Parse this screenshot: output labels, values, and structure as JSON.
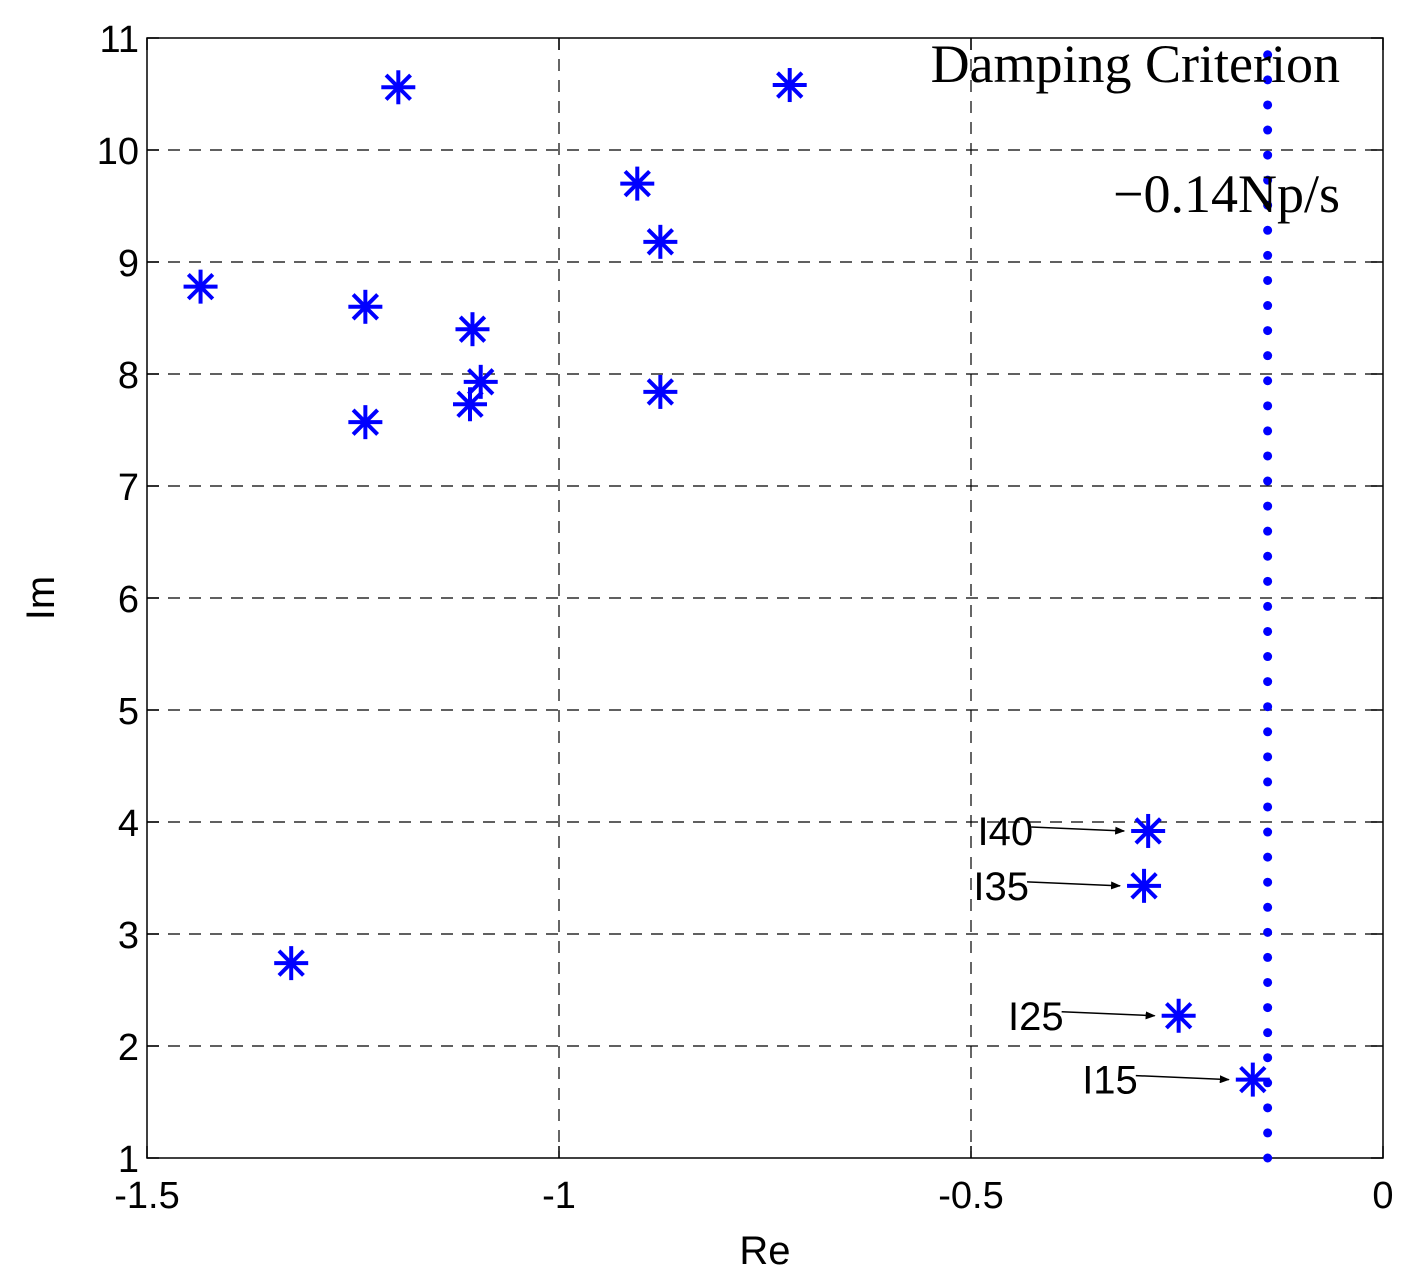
{
  "chart_data": {
    "type": "scatter",
    "title": "",
    "xlabel": "Re",
    "ylabel": "Im",
    "xlim": [
      -1.5,
      0
    ],
    "ylim": [
      1,
      11
    ],
    "xticks": [
      -1.5,
      -1,
      -0.5,
      0
    ],
    "xtick_labels": [
      "-1.5",
      "-1",
      "-0.5",
      "0"
    ],
    "yticks": [
      1,
      2,
      3,
      4,
      5,
      6,
      7,
      8,
      9,
      10,
      11
    ],
    "ytick_labels": [
      "1",
      "2",
      "3",
      "4",
      "5",
      "6",
      "7",
      "8",
      "9",
      "10",
      "11"
    ],
    "grid": true,
    "marker": "asterisk",
    "marker_color": "#0000ff",
    "points": [
      {
        "x": -1.435,
        "y": 8.78
      },
      {
        "x": -1.195,
        "y": 10.56
      },
      {
        "x": -1.235,
        "y": 8.6
      },
      {
        "x": -1.235,
        "y": 7.57
      },
      {
        "x": -1.105,
        "y": 8.4
      },
      {
        "x": -1.095,
        "y": 7.93
      },
      {
        "x": -1.108,
        "y": 7.73
      },
      {
        "x": -1.325,
        "y": 2.74
      },
      {
        "x": -0.905,
        "y": 9.7
      },
      {
        "x": -0.877,
        "y": 9.18
      },
      {
        "x": -0.877,
        "y": 7.84
      },
      {
        "x": -0.72,
        "y": 10.58
      },
      {
        "x": -0.285,
        "y": 3.92
      },
      {
        "x": -0.29,
        "y": 3.43
      },
      {
        "x": -0.248,
        "y": 2.27
      },
      {
        "x": -0.158,
        "y": 1.7
      }
    ],
    "criterion": {
      "x": -0.14,
      "color": "#0000ff",
      "style": "dotted",
      "label_line1": "Damping Criterion",
      "label_line2": "−0.14Np/s"
    },
    "annotations": [
      {
        "text": "I40",
        "x": -0.285,
        "y": 3.92
      },
      {
        "text": "I35",
        "x": -0.29,
        "y": 3.43
      },
      {
        "text": "I25",
        "x": -0.248,
        "y": 2.27
      },
      {
        "text": "I15",
        "x": -0.158,
        "y": 1.7
      }
    ]
  }
}
